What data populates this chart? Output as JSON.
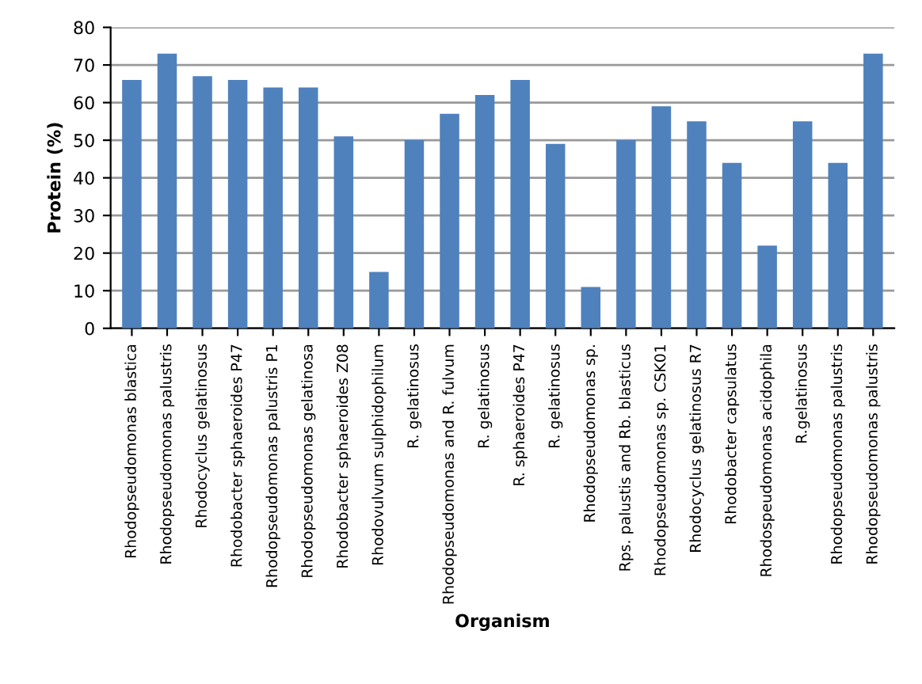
{
  "chart_data": {
    "type": "bar",
    "xlabel": "Organism",
    "ylabel": "Protein (%)",
    "categories": [
      "Rhodopseudomonas blastica",
      "Rhodopseudomonas palustris",
      "Rhodocyclus gelatinosus",
      "Rhodobacter sphaeroides P47",
      "Rhodopseudomonas palustris P1",
      "Rhodopseudomonas gelatinosa",
      "Rhodobacter sphaeroides Z08",
      "Rhodovulvum sulphidophilum",
      "R. gelatinosus",
      "Rhodopseudomonas and R. fulvum",
      "R. gelatinosus",
      "R. sphaeroides P47",
      "R. gelatinosus",
      "Rhodopseudomonas sp.",
      "Rps. palustis and Rb. blasticus",
      "Rhodopseudomonas sp. CSK01",
      "Rhodocyclus gelatinosus R7",
      "Rhodobacter capsulatus",
      "Rhodospeudomonas acidophila",
      "R.gelatinosus",
      "Rhodopseudomonas palustris",
      "Rhodopseudomonas palustris"
    ],
    "values": [
      66,
      73,
      67,
      66,
      64,
      64,
      51,
      15,
      50,
      57,
      62,
      66,
      49,
      11,
      50,
      59,
      55,
      44,
      22,
      55,
      44,
      73
    ],
    "color": "#4f81bd",
    "ylim": [
      0,
      80
    ],
    "yticks": [
      0,
      10,
      20,
      30,
      40,
      50,
      60,
      70,
      80
    ],
    "grid": "y"
  }
}
